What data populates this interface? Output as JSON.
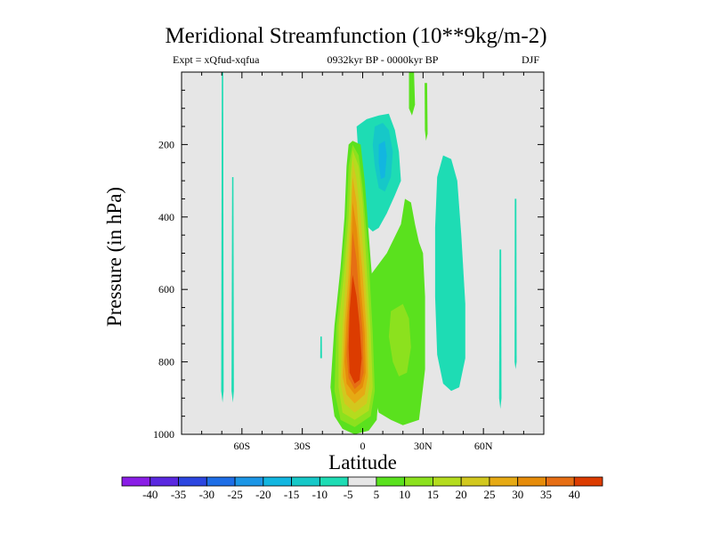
{
  "chart_data": {
    "type": "heatmap",
    "title": "Meridional Streamfunction (10**9kg/m-2)",
    "subtitle_left": "Expt = xQfud-xqfua",
    "subtitle_center": "0932kyr BP - 0000kyr BP",
    "subtitle_right": "DJF",
    "xlabel": "Latitude",
    "ylabel": "Pressure (in hPa)",
    "xlim": [
      -90,
      90
    ],
    "ylim": [
      1000,
      0
    ],
    "x_ticks": [
      {
        "value": -60,
        "label": "60S"
      },
      {
        "value": -30,
        "label": "30S"
      },
      {
        "value": 0,
        "label": "0"
      },
      {
        "value": 30,
        "label": "30N"
      },
      {
        "value": 60,
        "label": "60N"
      }
    ],
    "y_ticks": [
      {
        "value": 200,
        "label": "200"
      },
      {
        "value": 400,
        "label": "400"
      },
      {
        "value": 600,
        "label": "600"
      },
      {
        "value": 800,
        "label": "800"
      },
      {
        "value": 1000,
        "label": "1000"
      }
    ],
    "colorbar": {
      "labels": [
        "-40",
        "-35",
        "-30",
        "-25",
        "-20",
        "-15",
        "-10",
        "-5",
        "5",
        "10",
        "15",
        "20",
        "25",
        "30",
        "35",
        "40"
      ],
      "colors": [
        "#8a1ee6",
        "#5a28e0",
        "#2c46e0",
        "#1e6ee6",
        "#1c96e6",
        "#12b6e0",
        "#16c8c8",
        "#1edcb4",
        "#e6e6e6",
        "#5ae11e",
        "#8ce11e",
        "#b4dc1e",
        "#d2c81e",
        "#e6aa14",
        "#e68c0a",
        "#e66e14",
        "#dc3c00"
      ]
    },
    "background_color": "#e6e6e6",
    "features": [
      {
        "name": "tropical-positive-cell",
        "lat_range": [
          -12,
          8
        ],
        "p_range": [
          190,
          1000
        ],
        "peak_value": 40
      },
      {
        "name": "nh-subtropical-positive-region",
        "lat_range": [
          7,
          32
        ],
        "p_range": [
          330,
          980
        ],
        "peak_value": 15
      },
      {
        "name": "nh-negative-upper-cell",
        "lat_range": [
          -3,
          23
        ],
        "p_range": [
          110,
          440
        ],
        "peak_value": -20
      },
      {
        "name": "nh-midlatitude-negative-cell",
        "lat_range": [
          36,
          52
        ],
        "p_range": [
          280,
          880
        ],
        "peak_value": -10
      },
      {
        "name": "sh-polar-negative-streaks",
        "lat_range": [
          -72,
          -63
        ],
        "p_range": [
          0,
          910
        ],
        "peak_value": -10
      }
    ]
  }
}
